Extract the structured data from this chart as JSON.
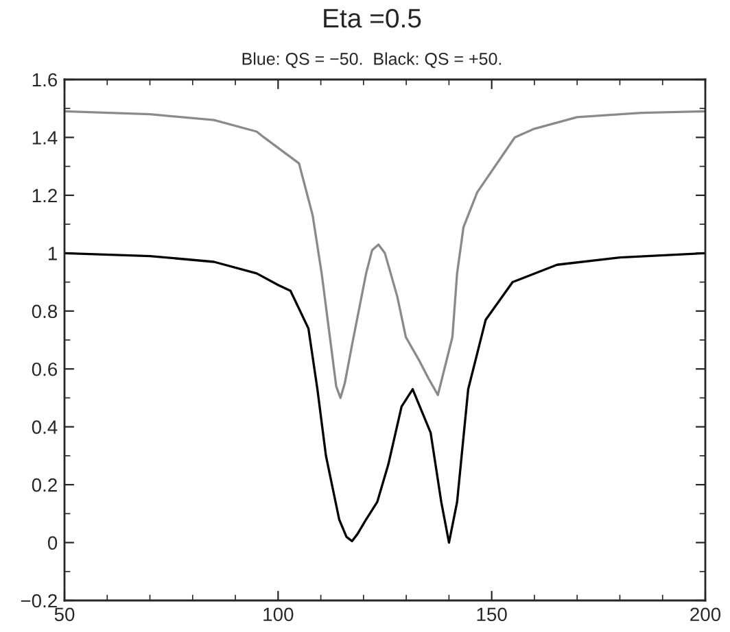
{
  "chart_data": {
    "type": "line",
    "title": "Eta =0.5",
    "subtitle": "Blue: QS = −50.  Black: QS = +50.",
    "xlim": [
      50,
      200
    ],
    "ylim": [
      -0.2,
      1.6
    ],
    "xticks": [
      50,
      100,
      150,
      200
    ],
    "yticks": [
      {
        "value": -0.2,
        "label": "−0.2"
      },
      0,
      0.2,
      0.4,
      0.6,
      0.8,
      1,
      1.2,
      1.4,
      1.6
    ],
    "grid": false,
    "line_style": "solid",
    "marker": "none",
    "series": [
      {
        "color": "#8a8a8a",
        "x": [
          50,
          70,
          85,
          95,
          96.7,
          104.9,
          108.1,
          110.2,
          112.3,
          113.6,
          114.6,
          115.6,
          117.4,
          120.6,
          122.0,
          123.5,
          125.0,
          127.9,
          129.9,
          133.0,
          135.1,
          137.4,
          140.8,
          141.9,
          143.4,
          146.6,
          155.4,
          160,
          170,
          185,
          200
        ],
        "values": [
          1.49,
          1.48,
          1.46,
          1.42,
          1.4,
          1.31,
          1.13,
          0.93,
          0.69,
          0.54,
          0.5,
          0.55,
          0.69,
          0.93,
          1.01,
          1.03,
          1.0,
          0.85,
          0.71,
          0.63,
          0.57,
          0.51,
          0.71,
          0.93,
          1.09,
          1.21,
          1.4,
          1.43,
          1.47,
          1.485,
          1.49
        ]
      },
      {
        "color": "#000000",
        "x": [
          50,
          70,
          85,
          95,
          100,
          102.9,
          107.1,
          109.2,
          111.2,
          114.3,
          116.0,
          117.3,
          118.6,
          120.6,
          123.2,
          125.8,
          128.9,
          131.5,
          135.7,
          138.2,
          140.0,
          141.9,
          144.5,
          148.6,
          154.9,
          165.3,
          180,
          200
        ],
        "values": [
          1.0,
          0.99,
          0.97,
          0.93,
          0.89,
          0.87,
          0.74,
          0.53,
          0.3,
          0.08,
          0.02,
          0.005,
          0.03,
          0.08,
          0.14,
          0.27,
          0.47,
          0.53,
          0.38,
          0.14,
          0.0,
          0.14,
          0.53,
          0.77,
          0.9,
          0.96,
          0.985,
          1.0
        ]
      }
    ]
  }
}
